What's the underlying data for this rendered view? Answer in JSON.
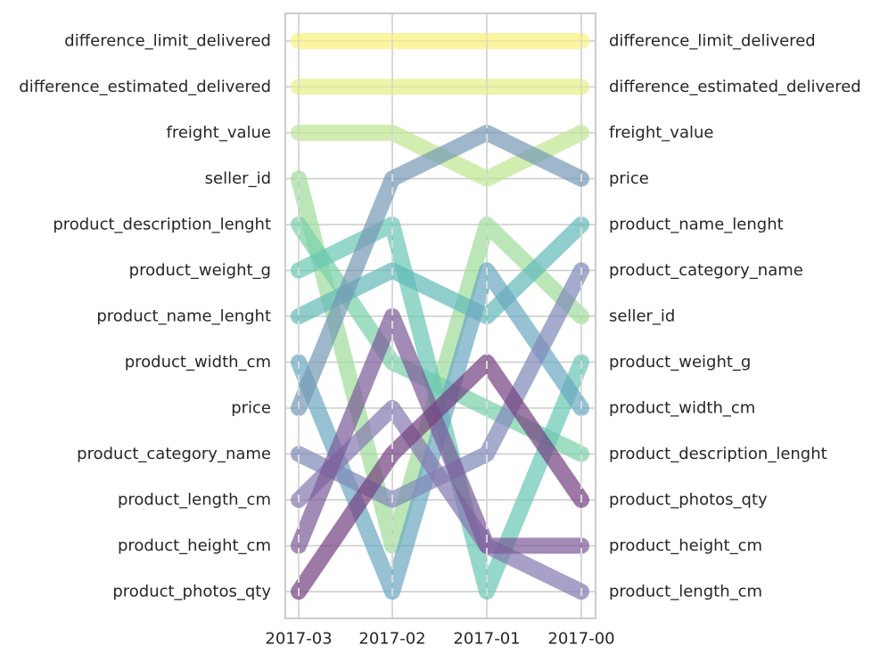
{
  "chart_data": {
    "type": "line",
    "title": "",
    "xlabel": "",
    "ylabel": "",
    "categories": [
      "2017-03",
      "2017-02",
      "2017-01",
      "2017-00"
    ],
    "ylim": [
      1,
      13
    ],
    "grid": true,
    "left_ticks": [
      "difference_limit_delivered",
      "difference_estimated_delivered",
      "freight_value",
      "seller_id",
      "product_description_lenght",
      "product_weight_g",
      "product_name_lenght",
      "product_width_cm",
      "price",
      "product_category_name",
      "product_length_cm",
      "product_height_cm",
      "product_photos_qty"
    ],
    "right_ticks": [
      "difference_limit_delivered",
      "difference_estimated_delivered",
      "freight_value",
      "price",
      "product_name_lenght",
      "product_category_name",
      "seller_id",
      "product_weight_g",
      "product_width_cm",
      "product_description_lenght",
      "product_photos_qty",
      "product_height_cm",
      "product_length_cm"
    ],
    "series": [
      {
        "name": "difference_limit_delivered",
        "values": [
          1,
          1,
          1,
          1
        ],
        "color": "#f9f17a"
      },
      {
        "name": "difference_estimated_delivered",
        "values": [
          2,
          2,
          2,
          2
        ],
        "color": "#e2f085"
      },
      {
        "name": "freight_value",
        "values": [
          3,
          3,
          4,
          3
        ],
        "color": "#bde68f"
      },
      {
        "name": "seller_id",
        "values": [
          4,
          12,
          5,
          7
        ],
        "color": "#9edd9a"
      },
      {
        "name": "product_description_lenght",
        "values": [
          5,
          8,
          9,
          10
        ],
        "color": "#78d0a8"
      },
      {
        "name": "product_weight_g",
        "values": [
          6,
          5,
          13,
          8
        ],
        "color": "#68c8b4"
      },
      {
        "name": "product_name_lenght",
        "values": [
          7,
          6,
          7,
          5
        ],
        "color": "#61b9b9"
      },
      {
        "name": "product_width_cm",
        "values": [
          8,
          13,
          6,
          9
        ],
        "color": "#6aa8c0"
      },
      {
        "name": "price",
        "values": [
          9,
          4,
          3,
          4
        ],
        "color": "#7599b5"
      },
      {
        "name": "product_category_name",
        "values": [
          10,
          11,
          10,
          6
        ],
        "color": "#7f87b8"
      },
      {
        "name": "product_length_cm",
        "values": [
          11,
          9,
          12,
          13
        ],
        "color": "#8577af"
      },
      {
        "name": "product_height_cm",
        "values": [
          12,
          7,
          12,
          12
        ],
        "color": "#7b5a98"
      },
      {
        "name": "product_photos_qty",
        "values": [
          13,
          10,
          8,
          11
        ],
        "color": "#74407f"
      }
    ]
  }
}
